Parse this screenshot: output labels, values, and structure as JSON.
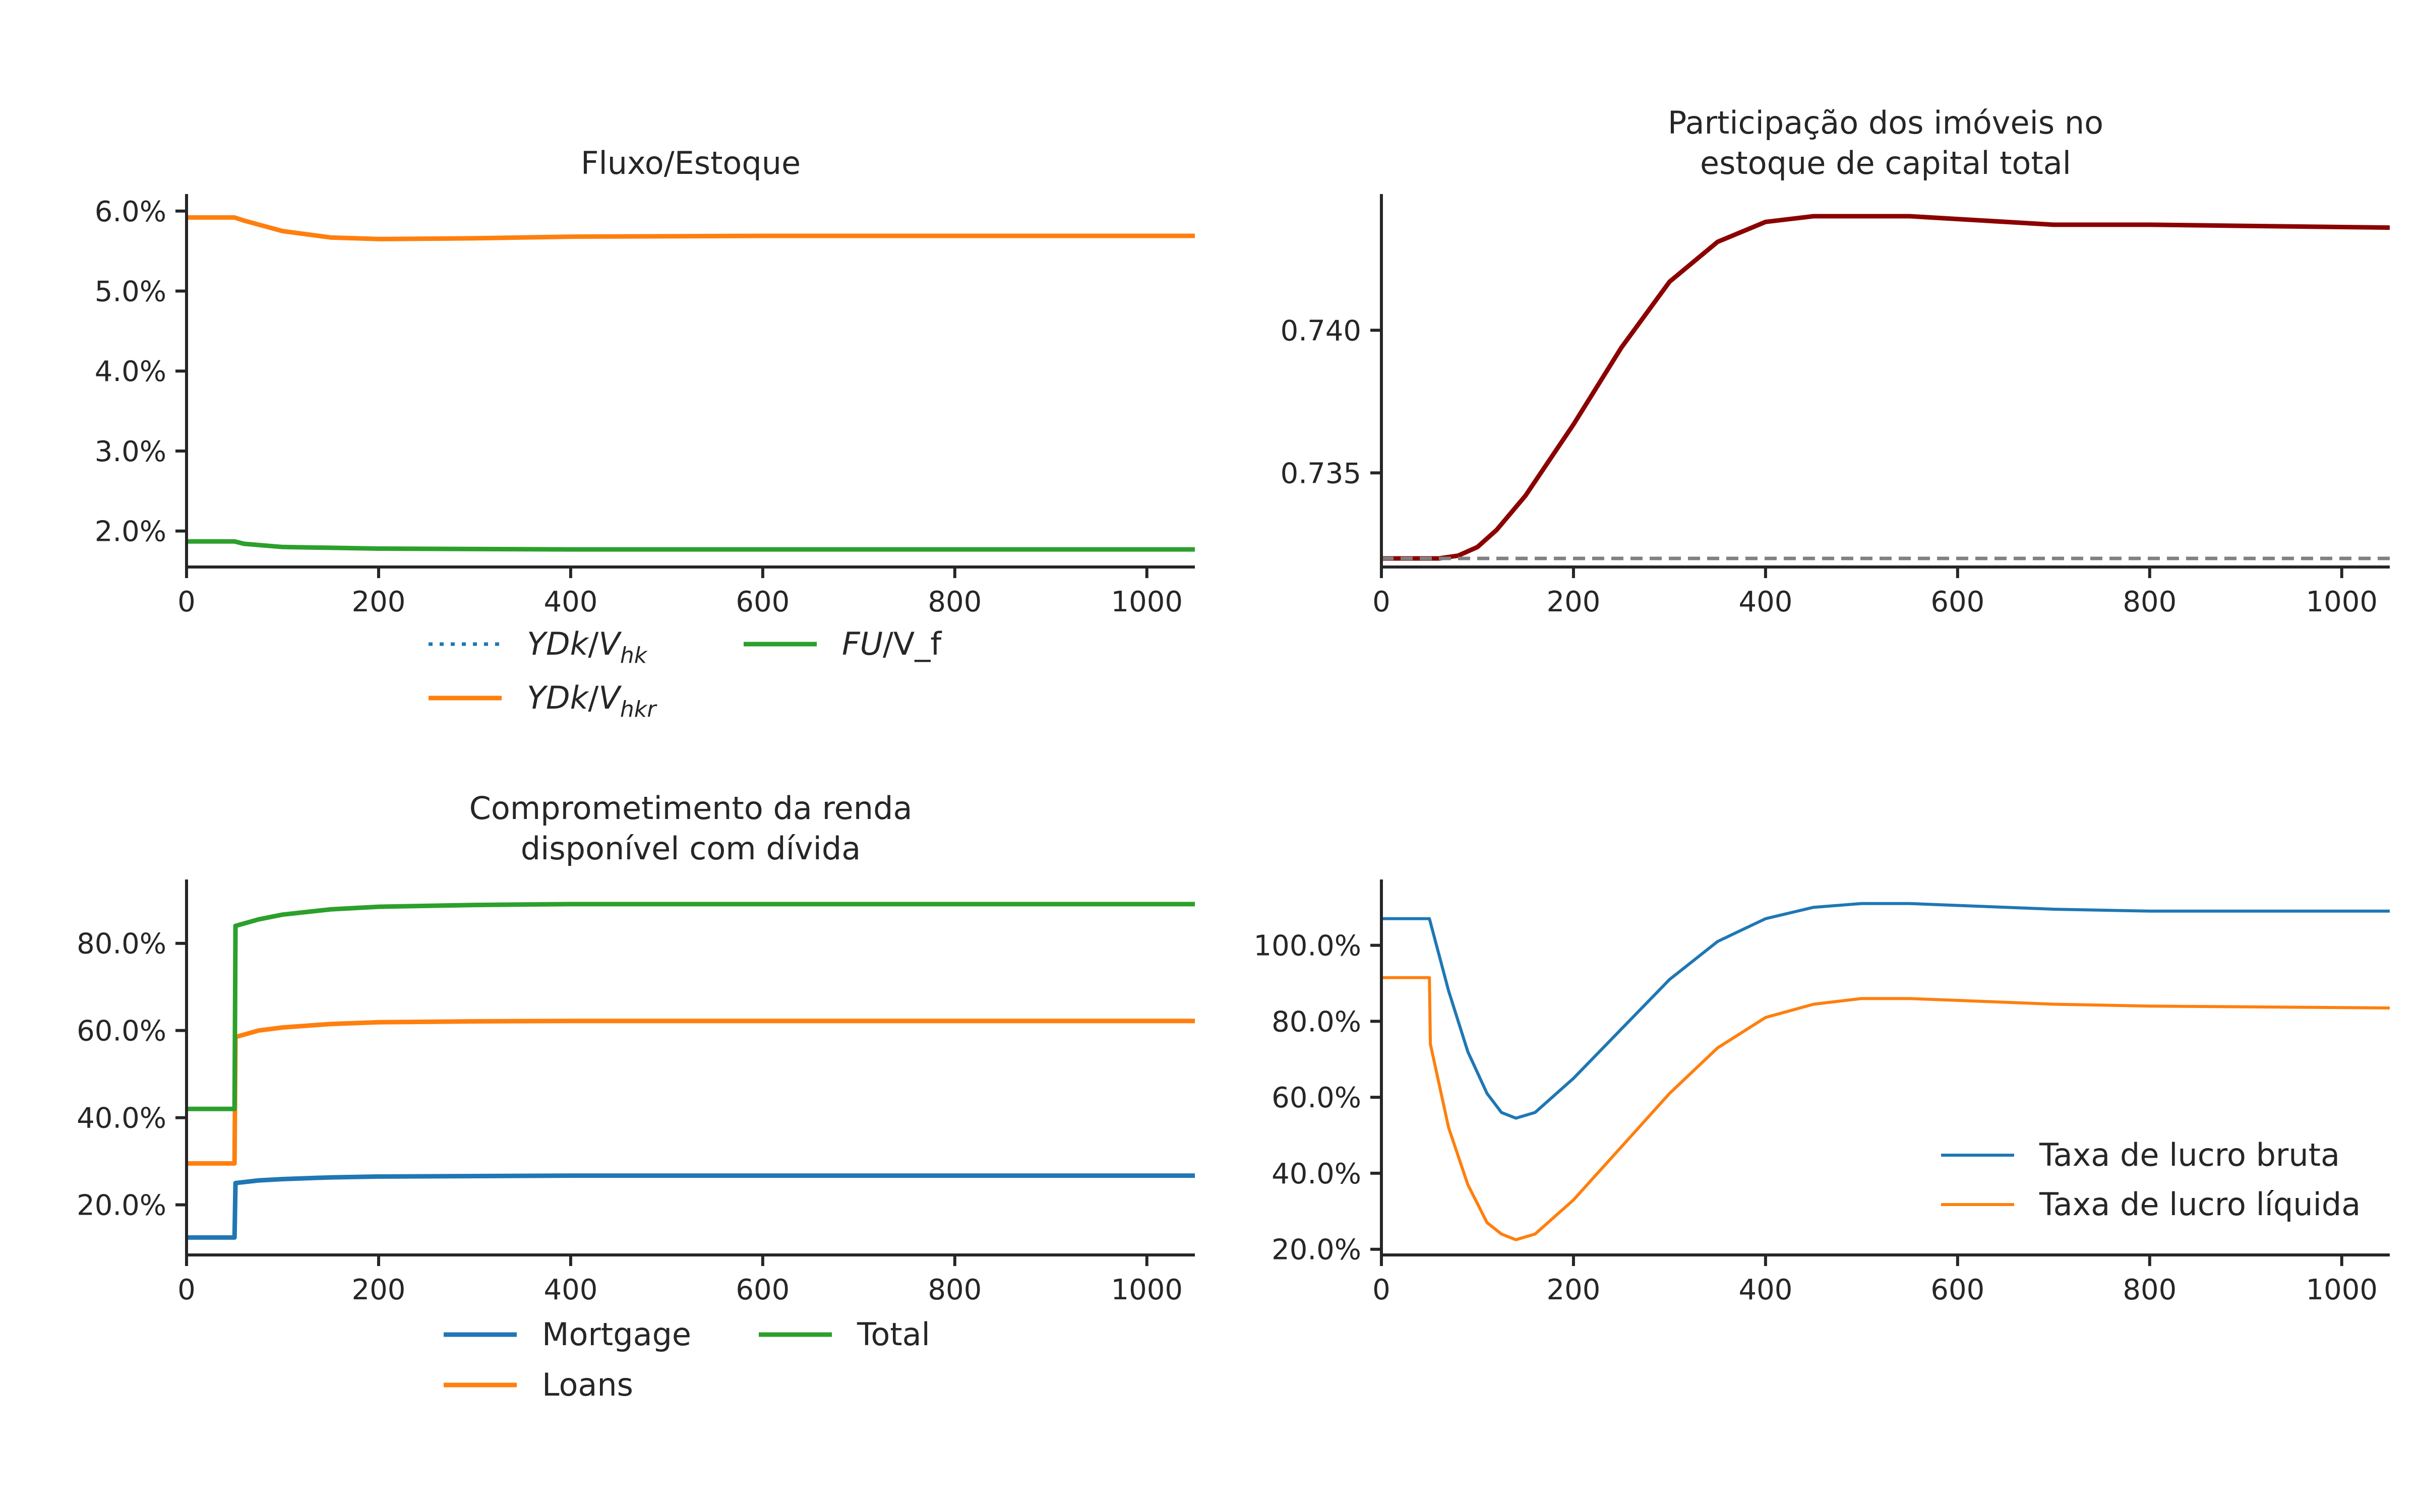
{
  "chart_data": [
    {
      "type": "line",
      "title": "Fluxo/Estoque",
      "xlabel": "",
      "ylabel": "",
      "xlim": [
        0,
        1050
      ],
      "ylim": [
        0.0155,
        0.0615
      ],
      "x_ticks": [
        0,
        200,
        400,
        600,
        800,
        1000
      ],
      "x_tick_labels": [
        "0",
        "200",
        "400",
        "600",
        "800",
        "1000"
      ],
      "y_ticks": [
        0.02,
        0.03,
        0.04,
        0.05,
        0.06
      ],
      "y_tick_labels": [
        "2.0%",
        "3.0%",
        "4.0%",
        "5.0%",
        "6.0%"
      ],
      "grid": false,
      "legend": {
        "placement": "below",
        "columns": 2
      },
      "series": [
        {
          "name": "YDk/V",
          "name_sub": "hk",
          "color": "#1f77b4",
          "style": "dotted",
          "x": [
            0,
            50,
            60,
            100,
            150,
            200,
            300,
            400,
            600,
            800,
            1050
          ],
          "y": [
            0.0592,
            0.0592,
            0.0588,
            0.0575,
            0.0567,
            0.0565,
            0.0566,
            0.0568,
            0.0569,
            0.0569,
            0.0569
          ]
        },
        {
          "name": "YDk/V",
          "name_sub": "hkr",
          "color": "#ff7f0e",
          "style": "solid",
          "x": [
            0,
            50,
            60,
            100,
            150,
            200,
            300,
            400,
            600,
            800,
            1050
          ],
          "y": [
            0.0592,
            0.0592,
            0.0588,
            0.0575,
            0.0567,
            0.0565,
            0.0566,
            0.0568,
            0.0569,
            0.0569,
            0.0569
          ]
        },
        {
          "name": "FU/V_f",
          "name_italic": "FU",
          "name_rest": "/V_f",
          "color": "#2ca02c",
          "style": "solid",
          "x": [
            0,
            50,
            60,
            100,
            200,
            400,
            1050
          ],
          "y": [
            0.0187,
            0.0187,
            0.0184,
            0.018,
            0.0178,
            0.0177,
            0.0177
          ]
        }
      ]
    },
    {
      "type": "line",
      "title": "Participação dos imóveis no",
      "title_line2": "estoque de capital total",
      "xlabel": "",
      "ylabel": "",
      "xlim": [
        0,
        1050
      ],
      "ylim": [
        0.7317,
        0.7446
      ],
      "x_ticks": [
        0,
        200,
        400,
        600,
        800,
        1000
      ],
      "x_tick_labels": [
        "0",
        "200",
        "400",
        "600",
        "800",
        "1000"
      ],
      "y_ticks": [
        0.735,
        0.74
      ],
      "y_tick_labels": [
        "0.735",
        "0.740"
      ],
      "grid": false,
      "series": [
        {
          "color": "#8b0000",
          "style": "solid",
          "x": [
            0,
            60,
            80,
            100,
            120,
            150,
            200,
            250,
            300,
            350,
            400,
            450,
            500,
            550,
            600,
            700,
            800,
            1050
          ],
          "y": [
            0.732,
            0.732,
            0.7321,
            0.7324,
            0.733,
            0.7342,
            0.7367,
            0.7394,
            0.7417,
            0.7431,
            0.7438,
            0.744,
            0.744,
            0.744,
            0.7439,
            0.7437,
            0.7437,
            0.7436
          ]
        },
        {
          "color": "#808080",
          "style": "dashed",
          "x": [
            0,
            1050
          ],
          "y": [
            0.732,
            0.732
          ]
        }
      ]
    },
    {
      "type": "line",
      "title": "Comprometimento da renda",
      "title_line2": "disponível com dívida",
      "xlabel": "",
      "ylabel": "",
      "xlim": [
        0,
        1050
      ],
      "ylim": [
        0.085,
        0.935
      ],
      "x_ticks": [
        0,
        200,
        400,
        600,
        800,
        1000
      ],
      "x_tick_labels": [
        "0",
        "200",
        "400",
        "600",
        "800",
        "1000"
      ],
      "y_ticks": [
        0.2,
        0.4,
        0.6,
        0.8
      ],
      "y_tick_labels": [
        "20.0%",
        "40.0%",
        "60.0%",
        "80.0%"
      ],
      "grid": false,
      "legend": {
        "placement": "below",
        "columns": 2
      },
      "series": [
        {
          "name": "Mortgage",
          "color": "#1f77b4",
          "style": "solid",
          "x": [
            0,
            50,
            51,
            75,
            100,
            150,
            200,
            300,
            400,
            1050
          ],
          "y": [
            0.125,
            0.125,
            0.25,
            0.256,
            0.259,
            0.263,
            0.265,
            0.266,
            0.267,
            0.267
          ]
        },
        {
          "name": "Loans",
          "color": "#ff7f0e",
          "style": "solid",
          "x": [
            0,
            50,
            51,
            75,
            100,
            150,
            200,
            300,
            400,
            1050
          ],
          "y": [
            0.295,
            0.295,
            0.585,
            0.6,
            0.607,
            0.615,
            0.619,
            0.621,
            0.622,
            0.622
          ]
        },
        {
          "name": "Total",
          "color": "#2ca02c",
          "style": "solid",
          "x": [
            0,
            50,
            51,
            75,
            100,
            150,
            200,
            300,
            400,
            1050
          ],
          "y": [
            0.42,
            0.42,
            0.84,
            0.855,
            0.866,
            0.878,
            0.884,
            0.888,
            0.89,
            0.89
          ]
        }
      ]
    },
    {
      "type": "line",
      "title": "",
      "xlabel": "",
      "ylabel": "",
      "xlim": [
        0,
        1050
      ],
      "ylim": [
        0.185,
        1.16
      ],
      "x_ticks": [
        0,
        200,
        400,
        600,
        800,
        1000
      ],
      "x_tick_labels": [
        "0",
        "200",
        "400",
        "600",
        "800",
        "1000"
      ],
      "y_ticks": [
        0.2,
        0.4,
        0.6,
        0.8,
        1.0
      ],
      "y_tick_labels": [
        "20.0%",
        "40.0%",
        "60.0%",
        "80.0%",
        "100.0%"
      ],
      "grid": false,
      "legend": {
        "placement": "lower right",
        "columns": 1
      },
      "series": [
        {
          "name": "Taxa de lucro bruta",
          "color": "#1f77b4",
          "style": "solid",
          "x": [
            0,
            50,
            70,
            90,
            110,
            125,
            140,
            160,
            200,
            250,
            300,
            350,
            400,
            450,
            500,
            550,
            600,
            700,
            800,
            1050
          ],
          "y": [
            1.07,
            1.07,
            0.88,
            0.72,
            0.61,
            0.56,
            0.545,
            0.56,
            0.65,
            0.78,
            0.91,
            1.01,
            1.07,
            1.1,
            1.11,
            1.11,
            1.105,
            1.095,
            1.09,
            1.09
          ]
        },
        {
          "name": "Taxa de lucro líquida",
          "color": "#ff7f0e",
          "style": "solid",
          "x": [
            0,
            50,
            51,
            70,
            90,
            110,
            125,
            140,
            160,
            200,
            250,
            300,
            350,
            400,
            450,
            500,
            550,
            600,
            700,
            800,
            1050
          ],
          "y": [
            0.915,
            0.915,
            0.74,
            0.52,
            0.37,
            0.27,
            0.24,
            0.225,
            0.24,
            0.33,
            0.47,
            0.61,
            0.73,
            0.81,
            0.845,
            0.86,
            0.86,
            0.855,
            0.845,
            0.84,
            0.835
          ]
        }
      ]
    }
  ]
}
